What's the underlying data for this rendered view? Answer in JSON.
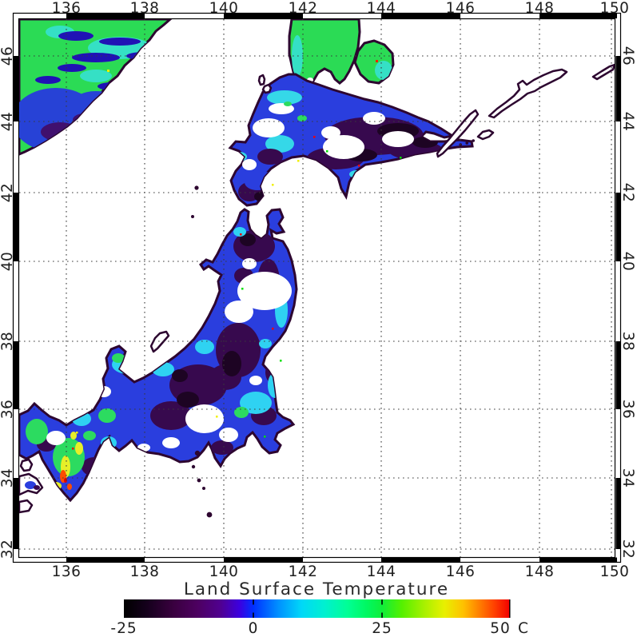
{
  "figure": {
    "background_color": "#ffffff",
    "description": "Satellite-derived land surface temperature map of Japan and surroundings with lat/lon graticule and rainbow color scale"
  },
  "axes": {
    "x_ticks": [
      "136",
      "138",
      "140",
      "142",
      "144",
      "146",
      "148",
      "150"
    ],
    "y_ticks": [
      "46",
      "44",
      "42",
      "40",
      "38",
      "36",
      "34",
      "32"
    ],
    "x_range_deg_east": [
      134.8,
      150.1
    ],
    "y_range_deg_north": [
      31.7,
      47.1
    ],
    "grid_style": "dotted, every 2 degrees",
    "border_style": "alternating black and white 2-degree bands"
  },
  "colorbar": {
    "title": "Land Surface Temperature",
    "tick_labels": [
      "-25",
      "0",
      "25",
      "50"
    ],
    "unit": "C",
    "range_c": [
      -25,
      50
    ],
    "gradient": [
      {
        "at": 0.0,
        "color": "#000000"
      },
      {
        "at": 0.06,
        "color": "#15001c"
      },
      {
        "at": 0.13,
        "color": "#3a0040"
      },
      {
        "at": 0.19,
        "color": "#4d0060"
      },
      {
        "at": 0.25,
        "color": "#500090"
      },
      {
        "at": 0.3,
        "color": "#3c00e0"
      },
      {
        "at": 0.335,
        "color": "#0030ff"
      },
      {
        "at": 0.4,
        "color": "#0090ff"
      },
      {
        "at": 0.46,
        "color": "#00d8f8"
      },
      {
        "at": 0.52,
        "color": "#00f0d0"
      },
      {
        "at": 0.58,
        "color": "#00ff95"
      },
      {
        "at": 0.63,
        "color": "#00f860"
      },
      {
        "at": 0.669,
        "color": "#10ee3a"
      },
      {
        "at": 0.72,
        "color": "#55f000"
      },
      {
        "at": 0.78,
        "color": "#aaf000"
      },
      {
        "at": 0.83,
        "color": "#e8f000"
      },
      {
        "at": 0.88,
        "color": "#ffc000"
      },
      {
        "at": 0.92,
        "color": "#ff8000"
      },
      {
        "at": 0.96,
        "color": "#ff4000"
      },
      {
        "at": 1.0,
        "color": "#f20000"
      }
    ]
  },
  "chart_data": {
    "type": "heatmap",
    "title": "Land Surface Temperature",
    "units": "C",
    "scale_range": [
      -25,
      50
    ],
    "x_axis_deg_east": [
      136,
      138,
      140,
      142,
      144,
      146,
      148,
      150
    ],
    "y_axis_deg_north": [
      46,
      44,
      42,
      40,
      38,
      36,
      34,
      32
    ],
    "no_data_color": "#ffffff",
    "coastline_color": "#2d0630",
    "regions": [
      {
        "name": "continental-asia-northwest",
        "approx_temp_c": "0 to 15",
        "appearance": "green and cyan with cold dark-blue streaks, purple patches near coast"
      },
      {
        "name": "sakhalin-south-tip",
        "approx_temp_c": "5 to 15",
        "appearance": "green with cyan edges"
      },
      {
        "name": "hokkaido",
        "approx_temp_c": "-25 to 0",
        "appearance": "large very-cold dark purple interior, blue and cyan west, many white cloud gaps"
      },
      {
        "name": "kuril-islands",
        "approx_temp_c": "no data",
        "appearance": "coastline outlines only, white interior"
      },
      {
        "name": "honshu-north-tohoku",
        "approx_temp_c": "-20 to 0",
        "appearance": "blue with dark purple mountains and large white cloud gaps"
      },
      {
        "name": "honshu-central-kanto",
        "approx_temp_c": "-10 to 10",
        "appearance": "blue with cyan lowlands, dark purple highlands, white gaps over the Alps"
      },
      {
        "name": "kii-peninsula-southwest",
        "approx_temp_c": "5 to 35",
        "appearance": "green with yellow, orange and red warm spots"
      },
      {
        "name": "sea",
        "approx_temp_c": "no data",
        "appearance": "white"
      }
    ],
    "legend_position": "bottom center",
    "grid_on": true
  }
}
